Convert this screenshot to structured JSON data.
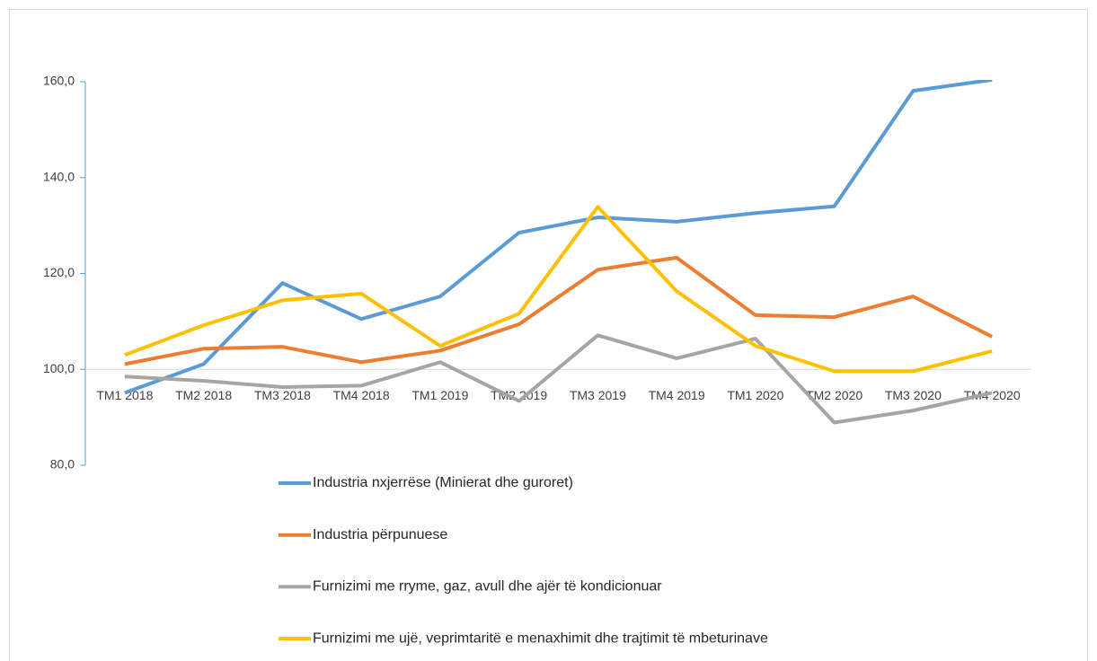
{
  "chart_data": {
    "type": "line",
    "categories": [
      "TM1 2018",
      "TM2 2018",
      "TM3 2018",
      "TM4 2018",
      "TM1 2019",
      "TM2 2019",
      "TM3 2019",
      "TM4 2019",
      "TM1 2020",
      "TM2 2020",
      "TM3 2020",
      "TM4 2020"
    ],
    "series": [
      {
        "name": "Industria nxjerrëse (Minierat dhe guroret)",
        "color": "#5b9bd5",
        "values": [
          95.1,
          101.1,
          118.0,
          110.5,
          115.2,
          128.5,
          131.7,
          130.8,
          132.6,
          134.0,
          158.1,
          160.4
        ]
      },
      {
        "name": "Industria përpunuese",
        "color": "#ed7d31",
        "values": [
          101.1,
          104.3,
          104.7,
          101.5,
          103.9,
          109.4,
          120.8,
          123.3,
          111.3,
          110.9,
          115.2,
          106.8
        ]
      },
      {
        "name": "Furnizimi me rryme, gaz, avull dhe ajër të kondicionuar",
        "color": "#a5a5a5",
        "values": [
          98.5,
          97.6,
          96.3,
          96.6,
          101.5,
          93.4,
          107.1,
          102.3,
          106.4,
          88.9,
          91.4,
          95.1
        ]
      },
      {
        "name": "Furnizimi me ujë, veprimtaritë e menaxhimit dhe trajtimit të mbeturinave",
        "color": "#ffc000",
        "values": [
          103.0,
          109.2,
          114.4,
          115.8,
          104.9,
          111.6,
          133.9,
          116.3,
          104.9,
          99.6,
          99.6,
          103.8
        ]
      }
    ],
    "ylim": [
      80,
      160
    ],
    "yticks": [
      {
        "value": 80,
        "label": "80,0"
      },
      {
        "value": 100,
        "label": "100,0"
      },
      {
        "value": 120,
        "label": "120,0"
      },
      {
        "value": 140,
        "label": "140,0"
      },
      {
        "value": 160,
        "label": "160,0"
      }
    ],
    "category_axis_at": 100,
    "legend": "bottom"
  }
}
